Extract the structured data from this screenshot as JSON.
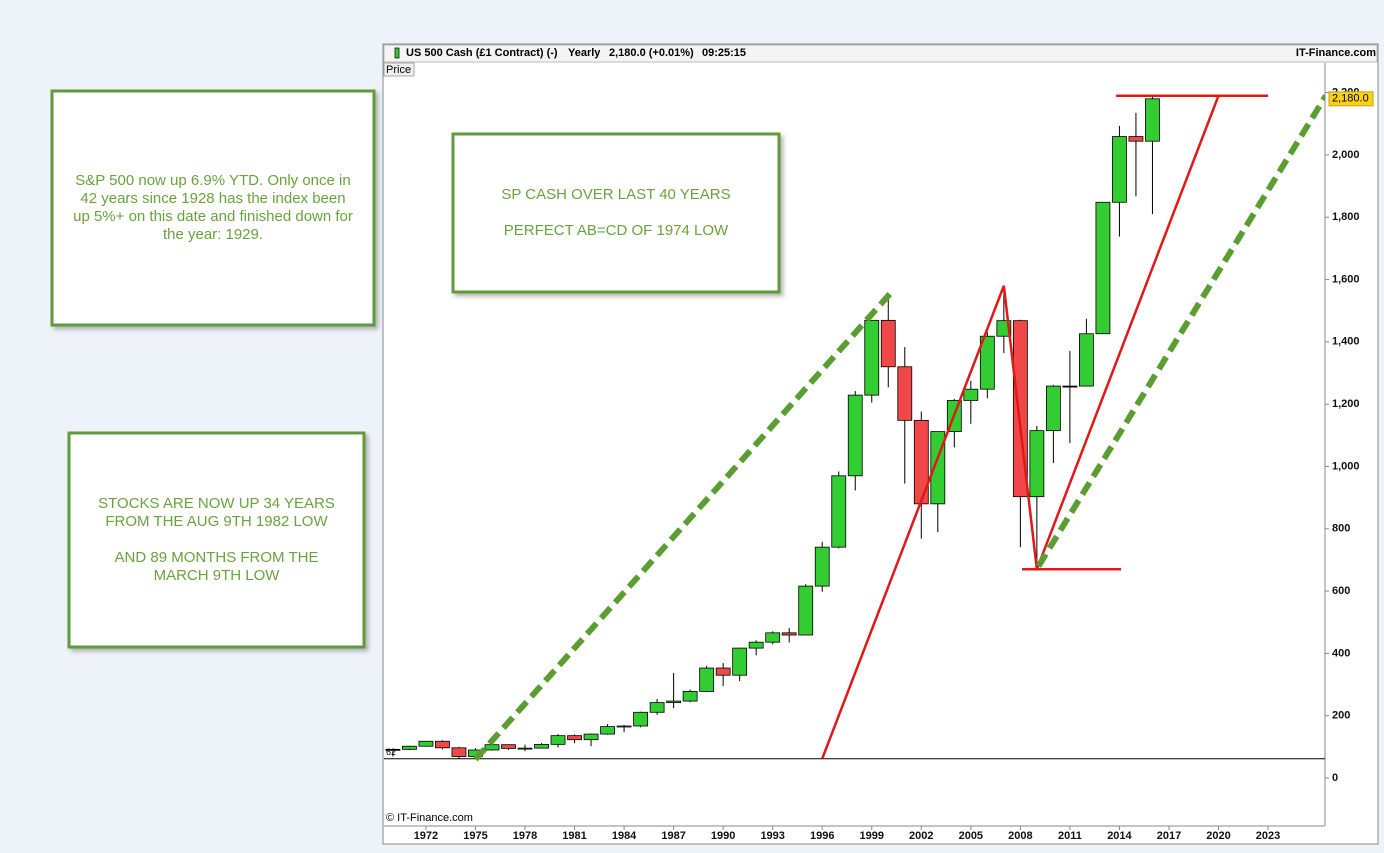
{
  "chart_data": {
    "type": "candlestick",
    "header": {
      "instrument": "US 500 Cash (£1 Contract) (-)",
      "period": "Yearly",
      "quote": "2,180.0 (+0.01%)",
      "time": "09:25:15",
      "brand": "IT-Finance.com",
      "panel_label": "Price",
      "copyright": "© IT-Finance.com"
    },
    "x": [
      1970,
      1971,
      1972,
      1973,
      1974,
      1975,
      1976,
      1977,
      1978,
      1979,
      1980,
      1981,
      1982,
      1983,
      1984,
      1985,
      1986,
      1987,
      1988,
      1989,
      1990,
      1991,
      1992,
      1993,
      1994,
      1995,
      1996,
      1997,
      1998,
      1999,
      2000,
      2001,
      2002,
      2003,
      2004,
      2005,
      2006,
      2007,
      2008,
      2009,
      2010,
      2011,
      2012,
      2013,
      2014,
      2015,
      2016
    ],
    "open": [
      92,
      92,
      102,
      118,
      97,
      69,
      90,
      107,
      95,
      96,
      108,
      136,
      123,
      141,
      165,
      167,
      211,
      242,
      247,
      278,
      353,
      330,
      417,
      436,
      466,
      459,
      616,
      741,
      970,
      1229,
      1469,
      1320,
      1148,
      880,
      1112,
      1212,
      1248,
      1418,
      1468,
      903,
      1115,
      1258,
      1258,
      1426,
      1848,
      2059,
      2044
    ],
    "high": [
      94,
      104,
      119,
      121,
      100,
      96,
      108,
      107,
      107,
      112,
      141,
      140,
      143,
      173,
      170,
      213,
      254,
      337,
      284,
      360,
      369,
      418,
      442,
      471,
      482,
      622,
      758,
      984,
      1242,
      1469,
      1553,
      1383,
      1176,
      1112,
      1217,
      1275,
      1431,
      1576,
      1471,
      1130,
      1262,
      1371,
      1474,
      1849,
      2093,
      2135,
      2190
    ],
    "low": [
      69,
      90,
      101,
      92,
      62,
      70,
      88,
      90,
      86,
      96,
      98,
      112,
      102,
      139,
      147,
      163,
      203,
      224,
      243,
      276,
      295,
      311,
      394,
      429,
      435,
      459,
      598,
      737,
      923,
      1205,
      1254,
      945,
      768,
      789,
      1061,
      1137,
      1219,
      1364,
      741,
      667,
      1011,
      1075,
      1259,
      1426,
      1738,
      1867,
      1810
    ],
    "close": [
      92,
      102,
      118,
      97,
      69,
      90,
      107,
      95,
      96,
      108,
      136,
      123,
      141,
      165,
      167,
      211,
      242,
      247,
      278,
      353,
      330,
      417,
      436,
      466,
      459,
      616,
      741,
      970,
      1229,
      1469,
      1320,
      1148,
      880,
      1112,
      1212,
      1248,
      1418,
      1468,
      903,
      1115,
      1258,
      1258,
      1426,
      1848,
      2059,
      2044,
      2180
    ],
    "up_color": "#33cc33",
    "down_color": "#f04848",
    "doji_color": "#000000",
    "xlim": [
      1969.46,
      2026.45
    ],
    "xticks": [
      1972,
      1975,
      1978,
      1981,
      1984,
      1987,
      1990,
      1993,
      1996,
      1999,
      2002,
      2005,
      2008,
      2011,
      2014,
      2017,
      2020,
      2023
    ],
    "ylim": [
      -154,
      2295
    ],
    "yticks": [
      0,
      200,
      400,
      600,
      800,
      {
        "value": 1000,
        "label": "1,000"
      },
      {
        "value": 1200,
        "label": "1,200"
      },
      {
        "value": 1400,
        "label": "1,400"
      },
      {
        "value": 1600,
        "label": "1,600"
      },
      {
        "value": 1800,
        "label": "1,800"
      },
      {
        "value": 2000,
        "label": "2,000"
      },
      {
        "value": 2200,
        "label": "2,200"
      }
    ],
    "last_value": {
      "value": 2180,
      "label": "2,180.0"
    },
    "reference_line": {
      "value": 62,
      "label": "62",
      "color": "#000000"
    },
    "annotation_lines": [
      {
        "color": "#5a9e32",
        "dashed": true,
        "x": [
          1975,
          2000.2
        ],
        "y": [
          60,
          1560
        ]
      },
      {
        "color": "#e01818",
        "dashed": false,
        "x": [
          1996,
          2007,
          2009,
          2020
        ],
        "y": [
          62,
          1580,
          670,
          2190
        ]
      },
      {
        "color": "#5a9e32",
        "dashed": true,
        "x": [
          2009.1,
          2026.5
        ],
        "y": [
          680,
          2190
        ]
      },
      {
        "color": "#e01818",
        "dashed": false,
        "x": [
          2013.8,
          2023
        ],
        "y": [
          2190,
          2190
        ]
      },
      {
        "color": "#e01818",
        "dashed": false,
        "x": [
          2008.1,
          2014.1
        ],
        "y": [
          670,
          670
        ]
      }
    ]
  },
  "notes": [
    {
      "lines": [
        "S&P 500 now up 6.9% YTD.  Only once in",
        "42 years since 1928 has the index been",
        "up 5%+ on this date and finished down for",
        "the year: 1929."
      ]
    },
    {
      "lines": [
        "SP CASH OVER LAST 40 YEARS",
        "",
        "PERFECT AB=CD OF 1974 LOW"
      ]
    },
    {
      "lines": [
        "STOCKS ARE NOW UP 34 YEARS",
        "FROM THE AUG 9TH 1982 LOW",
        "",
        "AND 89 MONTHS FROM THE",
        "MARCH 9TH LOW"
      ]
    }
  ]
}
